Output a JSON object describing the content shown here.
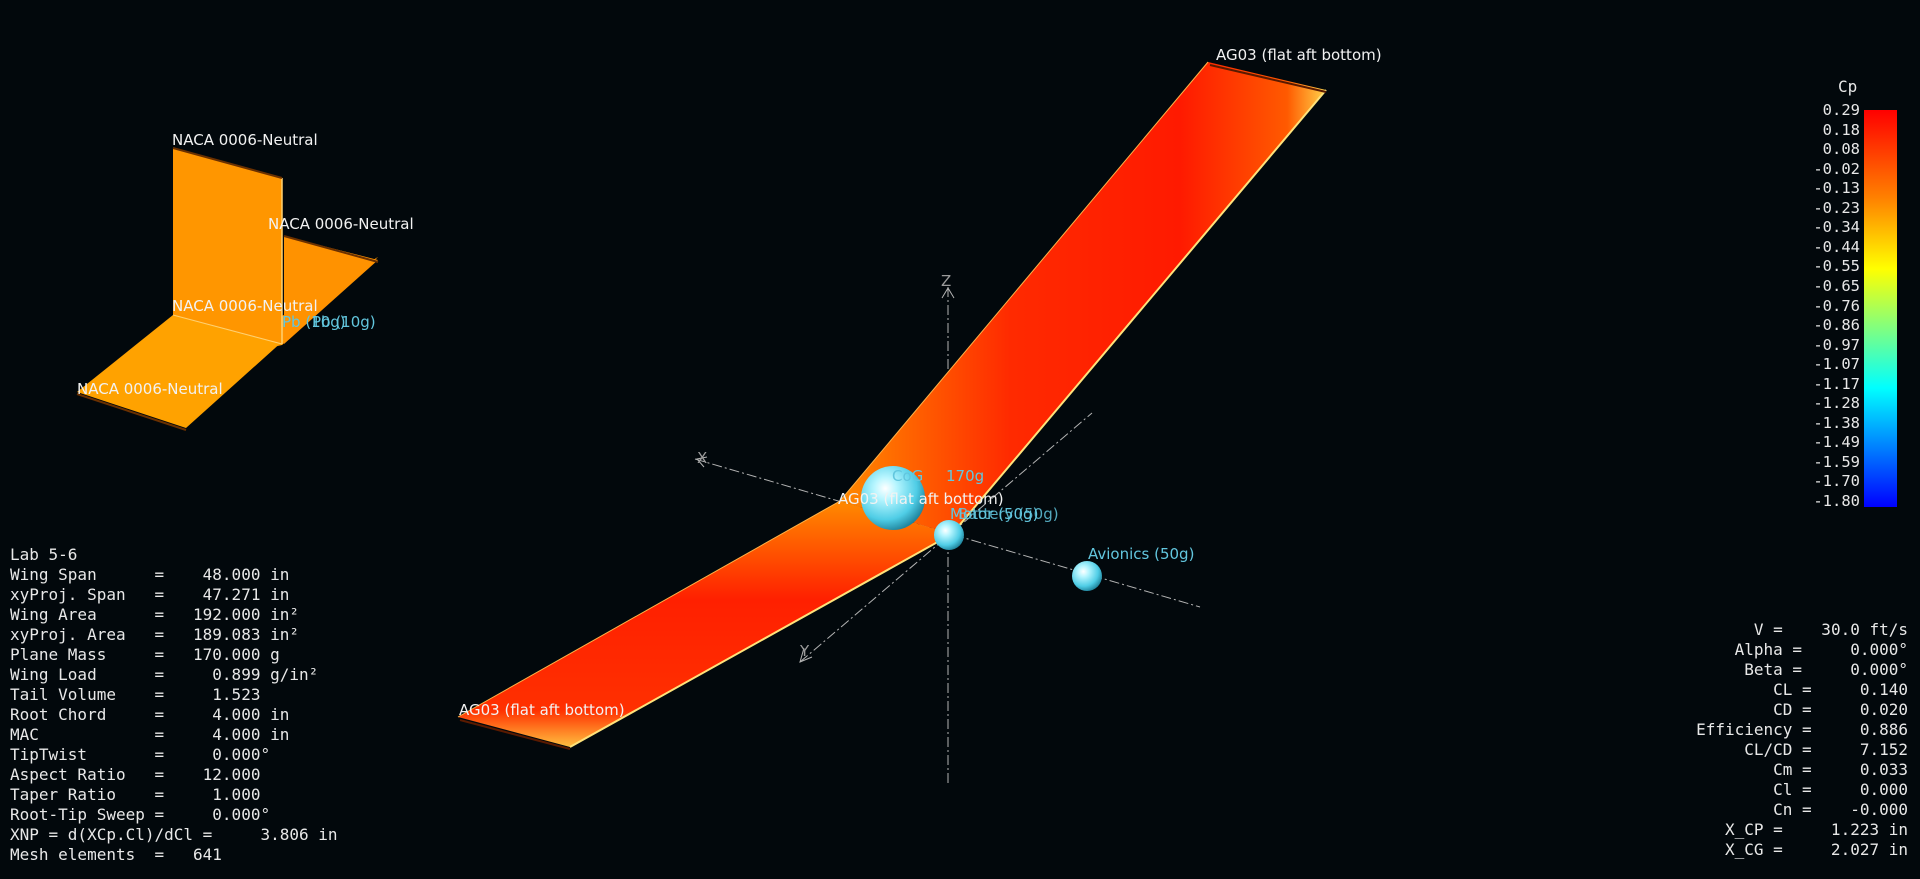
{
  "plane_name": "Lab 5-6",
  "properties": [
    {
      "label": "Wing Span      =    48.000 in"
    },
    {
      "label": "xyProj. Span   =    47.271 in"
    },
    {
      "label": "Wing Area      =   192.000 in²"
    },
    {
      "label": "xyProj. Area   =   189.083 in²"
    },
    {
      "label": "Plane Mass     =   170.000 g"
    },
    {
      "label": "Wing Load      =     0.899 g/in²"
    },
    {
      "label": "Tail Volume    =     1.523"
    },
    {
      "label": "Root Chord     =     4.000 in"
    },
    {
      "label": "MAC            =     4.000 in"
    },
    {
      "label": "TipTwist       =     0.000°"
    },
    {
      "label": "Aspect Ratio   =    12.000"
    },
    {
      "label": "Taper Ratio    =     1.000"
    },
    {
      "label": "Root-Tip Sweep =     0.000°"
    },
    {
      "label": "XNP = d(XCp.Cl)/dCl =     3.806 in"
    },
    {
      "label": "Mesh elements  =   641"
    }
  ],
  "results": [
    {
      "label": "V =    30.0 ft/s"
    },
    {
      "label": "Alpha =     0.000°"
    },
    {
      "label": "Beta =     0.000°"
    },
    {
      "label": "CL =     0.140"
    },
    {
      "label": "CD =     0.020"
    },
    {
      "label": "Efficiency =     0.886"
    },
    {
      "label": "CL/CD =     7.152"
    },
    {
      "label": "Cm =     0.033"
    },
    {
      "label": "Cl =     0.000"
    },
    {
      "label": "Cn =    -0.000"
    },
    {
      "label": "X_CP =     1.223 in"
    },
    {
      "label": "X_CG =     2.027 in"
    }
  ],
  "legend": {
    "title": "Cp",
    "ticks": [
      "0.29",
      "0.18",
      "0.08",
      "-0.02",
      "-0.13",
      "-0.23",
      "-0.34",
      "-0.44",
      "-0.55",
      "-0.65",
      "-0.76",
      "-0.86",
      "-0.97",
      "-1.07",
      "-1.17",
      "-1.28",
      "-1.38",
      "-1.49",
      "-1.59",
      "-1.70",
      "-1.80"
    ]
  },
  "labels": {
    "tip_right": "AG03 (flat aft bottom)",
    "tip_left": "AG03 (flat aft bottom)",
    "root": "AG03 (flat aft bottom)",
    "fin_top": "NACA 0006-Neutral",
    "elev_right": "NACA 0006-Neutral",
    "elev_root": "NACA 0006-Neutral",
    "elev_left": "NACA 0006-Neutral",
    "tail_mass": "Pb (10g)",
    "tail_mass2": "Pb (10g)",
    "cog": "CoG",
    "cog_mass": "170g",
    "motor": "Motor (50g)",
    "motor2": "Battery (50g)",
    "avionics": "Avionics (50g)"
  },
  "axes": {
    "x": "X",
    "y": "Y",
    "z": "Z"
  },
  "colors": {
    "background": "#02080c",
    "wing_center": "#ff1a00",
    "wing_edge": "#ff7a00",
    "tail": "#ffa000",
    "mass_sphere": "#5fd8ec"
  }
}
